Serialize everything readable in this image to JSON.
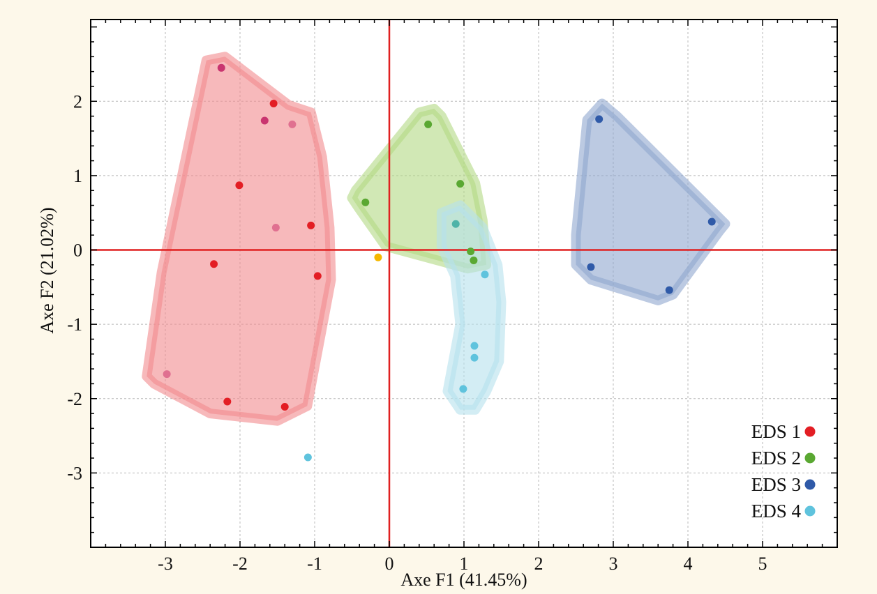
{
  "chart_data": {
    "type": "scatter",
    "title": "",
    "xlabel": "Axe F1  (41.45%)",
    "ylabel": "Axe F2  (21.02%)",
    "xlim": [
      -4,
      6
    ],
    "ylim": [
      -4,
      3.1
    ],
    "xticks": [
      "-3",
      "-2",
      "-1",
      "0",
      "1",
      "2",
      "3",
      "4",
      "5"
    ],
    "yticks": [
      "2",
      "1",
      "0",
      "-1",
      "-2",
      "-3"
    ],
    "grid": true,
    "origin_lines": {
      "color": "#e02020",
      "x": 0,
      "y": 0
    },
    "legend_position": "bottom-right",
    "series": [
      {
        "name": "EDS 1",
        "color": "#e31e24",
        "hull_color": "#f28b8e",
        "hull": [
          [
            -2.45,
            2.55
          ],
          [
            -2.2,
            2.6
          ],
          [
            -1.35,
            1.95
          ],
          [
            -1.05,
            1.85
          ],
          [
            -0.9,
            1.25
          ],
          [
            -0.8,
            0.3
          ],
          [
            -0.78,
            -0.4
          ],
          [
            -1.1,
            -2.1
          ],
          [
            -1.5,
            -2.3
          ],
          [
            -2.4,
            -2.2
          ],
          [
            -3.15,
            -1.8
          ],
          [
            -3.25,
            -1.7
          ],
          [
            -3.05,
            -0.3
          ]
        ],
        "points": [
          {
            "x": -2.25,
            "y": 2.45,
            "color": "#c9356f"
          },
          {
            "x": -1.55,
            "y": 1.97,
            "color": "#e31e24"
          },
          {
            "x": -1.67,
            "y": 1.74,
            "color": "#c9356f"
          },
          {
            "x": -1.3,
            "y": 1.69,
            "color": "#e07090"
          },
          {
            "x": -2.01,
            "y": 0.87,
            "color": "#e31e24"
          },
          {
            "x": -1.52,
            "y": 0.3,
            "color": "#e07090"
          },
          {
            "x": -1.05,
            "y": 0.33,
            "color": "#e31e24"
          },
          {
            "x": -2.35,
            "y": -0.19,
            "color": "#e31e24"
          },
          {
            "x": -0.96,
            "y": -0.35,
            "color": "#e31e24"
          },
          {
            "x": -2.98,
            "y": -1.67,
            "color": "#e07090"
          },
          {
            "x": -2.17,
            "y": -2.04,
            "color": "#e31e24"
          },
          {
            "x": -1.4,
            "y": -2.11,
            "color": "#e31e24"
          }
        ]
      },
      {
        "name": "EDS 2",
        "color": "#5aa832",
        "hull_color": "#b2d884",
        "hull": [
          [
            -0.45,
            0.8
          ],
          [
            0.4,
            1.85
          ],
          [
            0.6,
            1.9
          ],
          [
            0.7,
            1.8
          ],
          [
            1.15,
            0.9
          ],
          [
            1.25,
            0.4
          ],
          [
            1.3,
            -0.2
          ],
          [
            1.05,
            -0.25
          ],
          [
            -0.05,
            0.05
          ],
          [
            -0.4,
            0.55
          ],
          [
            -0.5,
            0.7
          ]
        ],
        "points": [
          {
            "x": 0.52,
            "y": 1.69,
            "color": "#5aa832"
          },
          {
            "x": 0.95,
            "y": 0.89,
            "color": "#5aa832"
          },
          {
            "x": -0.32,
            "y": 0.64,
            "color": "#5aa832"
          },
          {
            "x": 1.09,
            "y": -0.02,
            "color": "#5aa832"
          },
          {
            "x": 1.13,
            "y": -0.14,
            "color": "#5aa832"
          }
        ]
      },
      {
        "name": "EDS 3",
        "color": "#2f5aa8",
        "hull_color": "#8fa6ce",
        "hull": [
          [
            2.65,
            1.75
          ],
          [
            2.85,
            1.97
          ],
          [
            3.05,
            1.8
          ],
          [
            4.4,
            0.45
          ],
          [
            4.5,
            0.35
          ],
          [
            4.42,
            0.25
          ],
          [
            3.8,
            -0.6
          ],
          [
            3.6,
            -0.68
          ],
          [
            2.7,
            -0.4
          ],
          [
            2.5,
            -0.2
          ],
          [
            2.5,
            0.2
          ]
        ],
        "points": [
          {
            "x": 2.81,
            "y": 1.76,
            "color": "#2f5aa8"
          },
          {
            "x": 4.32,
            "y": 0.38,
            "color": "#2f5aa8"
          },
          {
            "x": 2.7,
            "y": -0.23,
            "color": "#2f5aa8"
          },
          {
            "x": 3.75,
            "y": -0.54,
            "color": "#2f5aa8"
          }
        ]
      },
      {
        "name": "EDS 4",
        "color": "#5fc3dd",
        "hull_color": "#b5e1ec",
        "hull": [
          [
            0.7,
            0.5
          ],
          [
            0.95,
            0.6
          ],
          [
            1.25,
            0.3
          ],
          [
            1.45,
            -0.2
          ],
          [
            1.5,
            -0.7
          ],
          [
            1.47,
            -1.5
          ],
          [
            1.3,
            -1.9
          ],
          [
            1.15,
            -2.15
          ],
          [
            0.95,
            -2.15
          ],
          [
            0.78,
            -1.9
          ],
          [
            0.95,
            -1.0
          ],
          [
            0.88,
            -0.35
          ],
          [
            0.7,
            0.05
          ],
          [
            0.7,
            0.35
          ]
        ],
        "points": [
          {
            "x": 0.89,
            "y": 0.35,
            "color": "#4fb3a8"
          },
          {
            "x": 1.28,
            "y": -0.33,
            "color": "#5fc3dd"
          },
          {
            "x": 1.14,
            "y": -1.29,
            "color": "#5fc3dd"
          },
          {
            "x": 1.14,
            "y": -1.45,
            "color": "#5fc3dd"
          },
          {
            "x": 0.99,
            "y": -1.87,
            "color": "#5fc3dd"
          },
          {
            "x": -1.09,
            "y": -2.79,
            "color": "#5fc3dd"
          }
        ]
      },
      {
        "name": "",
        "color": "#f5b800",
        "points": [
          {
            "x": -0.15,
            "y": -0.1,
            "color": "#f5b800"
          }
        ]
      }
    ]
  }
}
